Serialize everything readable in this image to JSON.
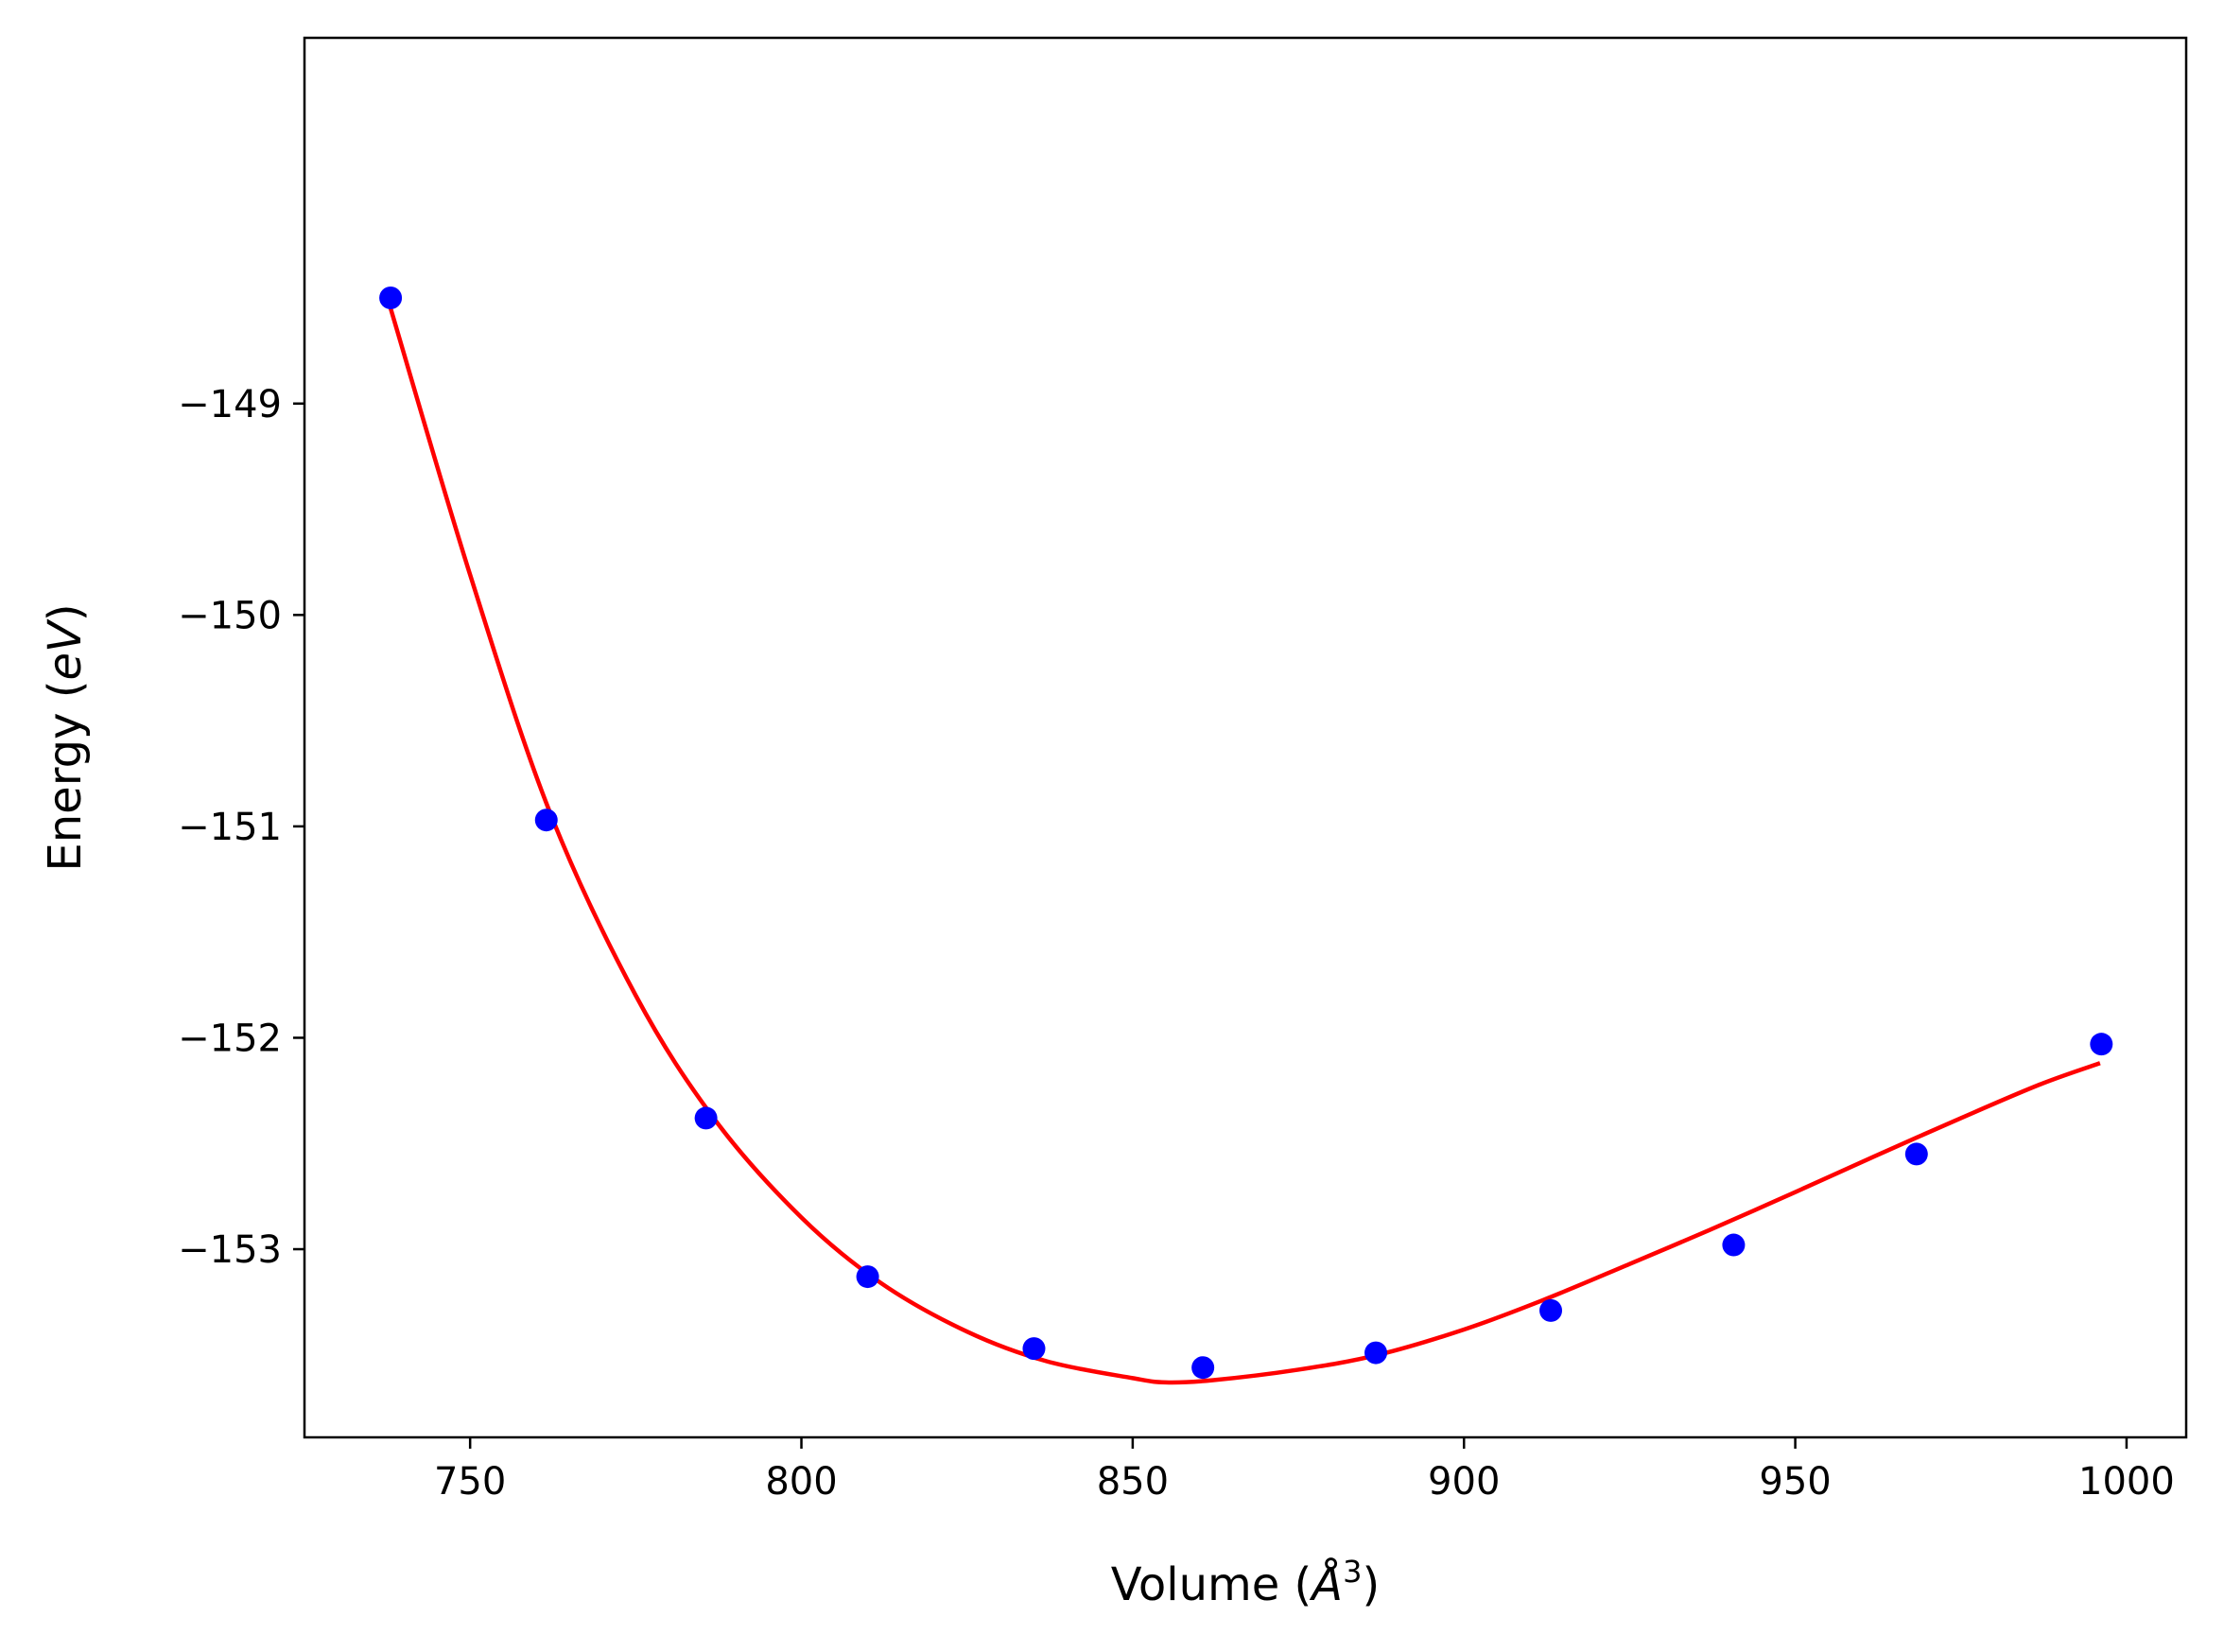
{
  "chart_data": {
    "type": "scatter",
    "xlabel_text": "Volume (",
    "xlabel_symbol": "Å",
    "xlabel_power": "3",
    "xlabel_close": ")",
    "ylabel_text": "Energy (",
    "ylabel_unit": "eV",
    "ylabel_close": ")",
    "xlim": [
      725,
      1009
    ],
    "ylim": [
      -153.89,
      -147.27
    ],
    "x_ticks": [
      750,
      800,
      850,
      900,
      950,
      1000
    ],
    "y_ticks": [
      -149,
      -150,
      -151,
      -152,
      -153
    ],
    "x_tick_labels": [
      "750",
      "800",
      "850",
      "900",
      "950",
      "1000"
    ],
    "y_tick_labels": [
      "−149",
      "−150",
      "−151",
      "−152",
      "−153"
    ],
    "grid": false,
    "series": [
      {
        "kind": "points",
        "color": "#0000ff",
        "x": [
          738.0,
          761.5,
          785.6,
          810.0,
          835.1,
          860.6,
          886.7,
          913.1,
          940.7,
          968.3,
          996.2
        ],
        "y": [
          -148.5,
          -150.97,
          -152.38,
          -153.13,
          -153.47,
          -153.56,
          -153.49,
          -153.29,
          -152.98,
          -152.55,
          -152.03
        ]
      },
      {
        "kind": "fit_curve",
        "color": "#ff0000",
        "x": [
          738,
          750,
          762,
          775,
          787,
          800,
          812,
          825,
          837,
          850,
          855,
          862,
          875,
          887,
          900,
          912,
          925,
          937,
          950,
          962,
          975,
          987,
          996
        ],
        "y": [
          -148.55,
          -149.81,
          -150.93,
          -151.8,
          -152.39,
          -152.85,
          -153.16,
          -153.39,
          -153.53,
          -153.61,
          -153.63,
          -153.62,
          -153.57,
          -153.5,
          -153.38,
          -153.24,
          -153.07,
          -152.91,
          -152.73,
          -152.56,
          -152.38,
          -152.22,
          -152.12
        ]
      }
    ]
  }
}
